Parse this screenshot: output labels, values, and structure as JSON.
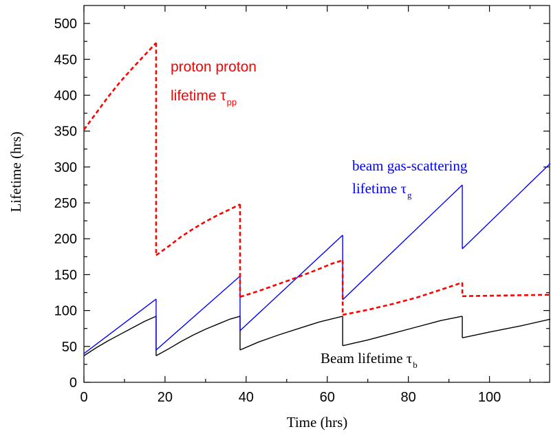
{
  "chart_data": {
    "type": "line",
    "xlabel": "Time  (hrs)",
    "ylabel": "Lifetime (hrs)",
    "xlim": [
      0,
      115
    ],
    "ylim": [
      0,
      525
    ],
    "x_ticks": [
      0,
      20,
      40,
      60,
      80,
      100
    ],
    "y_ticks": [
      0,
      50,
      100,
      150,
      200,
      250,
      300,
      350,
      400,
      450,
      500
    ],
    "x_tick_labels": [
      "0",
      "20",
      "40",
      "60",
      "80",
      "100"
    ],
    "y_tick_labels": [
      "0",
      "50",
      "100",
      "150",
      "200",
      "250",
      "300",
      "350",
      "400",
      "450",
      "500"
    ],
    "grid": false,
    "series": [
      {
        "id": "pp",
        "color": "#ff0000",
        "style": "dashed",
        "segments": [
          [
            [
              0,
              352
            ],
            [
              3,
              375
            ],
            [
              6,
              398
            ],
            [
              9,
              419
            ],
            [
              12,
              438
            ],
            [
              15,
              456
            ],
            [
              17.8,
              473
            ]
          ],
          [
            [
              17.8,
              473
            ],
            [
              17.8,
              177
            ]
          ],
          [
            [
              17.8,
              177
            ],
            [
              21,
              190
            ],
            [
              24,
              203
            ],
            [
              27,
              214
            ],
            [
              30,
              224
            ],
            [
              33,
              233
            ],
            [
              36,
              241
            ],
            [
              38.5,
              248
            ]
          ],
          [
            [
              38.5,
              248
            ],
            [
              38.5,
              119
            ]
          ],
          [
            [
              38.5,
              119
            ],
            [
              43,
              127
            ],
            [
              48,
              137
            ],
            [
              53,
              147
            ],
            [
              58,
              158
            ],
            [
              61,
              165
            ],
            [
              63.8,
              170
            ]
          ],
          [
            [
              63.8,
              170
            ],
            [
              63.8,
              94
            ]
          ],
          [
            [
              63.8,
              94
            ],
            [
              70,
              101
            ],
            [
              76,
              109
            ],
            [
              82,
              118
            ],
            [
              88,
              129
            ],
            [
              93.3,
              139
            ]
          ],
          [
            [
              93.3,
              139
            ],
            [
              93.3,
              120
            ]
          ],
          [
            [
              93.3,
              120
            ],
            [
              115,
              122
            ]
          ]
        ]
      },
      {
        "id": "gas",
        "color": "#0000ff",
        "style": "solid",
        "segments": [
          [
            [
              0,
              40
            ],
            [
              17.8,
              116
            ]
          ],
          [
            [
              17.8,
              116
            ],
            [
              17.8,
              45
            ]
          ],
          [
            [
              17.8,
              45
            ],
            [
              38.5,
              148
            ]
          ],
          [
            [
              38.5,
              148
            ],
            [
              38.5,
              72
            ]
          ],
          [
            [
              38.5,
              72
            ],
            [
              63.8,
              205
            ]
          ],
          [
            [
              63.8,
              205
            ],
            [
              63.8,
              115
            ]
          ],
          [
            [
              63.8,
              115
            ],
            [
              93.3,
              275
            ]
          ],
          [
            [
              93.3,
              275
            ],
            [
              93.3,
              186
            ]
          ],
          [
            [
              93.3,
              186
            ],
            [
              115,
              305
            ]
          ]
        ]
      },
      {
        "id": "beam",
        "color": "#000000",
        "style": "solid",
        "segments": [
          [
            [
              0,
              37
            ],
            [
              3,
              48
            ],
            [
              6,
              58
            ],
            [
              9,
              67
            ],
            [
              12,
              76
            ],
            [
              15,
              85
            ],
            [
              17.8,
              92
            ]
          ],
          [
            [
              17.8,
              92
            ],
            [
              17.8,
              37
            ]
          ],
          [
            [
              17.8,
              37
            ],
            [
              21,
              47
            ],
            [
              24,
              57
            ],
            [
              27,
              66
            ],
            [
              30,
              74
            ],
            [
              33,
              81
            ],
            [
              36,
              88
            ],
            [
              38.5,
              92
            ]
          ],
          [
            [
              38.5,
              92
            ],
            [
              38.5,
              45
            ]
          ],
          [
            [
              38.5,
              45
            ],
            [
              43,
              56
            ],
            [
              48,
              66
            ],
            [
              53,
              75
            ],
            [
              58,
              84
            ],
            [
              63.8,
              92
            ]
          ],
          [
            [
              63.8,
              92
            ],
            [
              63.8,
              51
            ]
          ],
          [
            [
              63.8,
              51
            ],
            [
              70,
              59
            ],
            [
              76,
              68
            ],
            [
              82,
              77
            ],
            [
              88,
              86
            ],
            [
              93.3,
              92
            ]
          ],
          [
            [
              93.3,
              92
            ],
            [
              93.3,
              62
            ]
          ],
          [
            [
              93.3,
              62
            ],
            [
              100,
              70
            ],
            [
              108,
              79
            ],
            [
              115,
              88
            ]
          ]
        ]
      }
    ],
    "annotations": [
      {
        "id": "pp",
        "line1": "proton proton",
        "line2": "lifetime τ",
        "sub": "pp",
        "color": "#ff0000"
      },
      {
        "id": "gas",
        "line1": "beam gas-scattering",
        "line2": "lifetime τ",
        "sub": "g",
        "color": "#0000ff"
      },
      {
        "id": "beam",
        "line1": "Beam lifetime τ",
        "sub": "b",
        "color": "#000000"
      }
    ]
  }
}
